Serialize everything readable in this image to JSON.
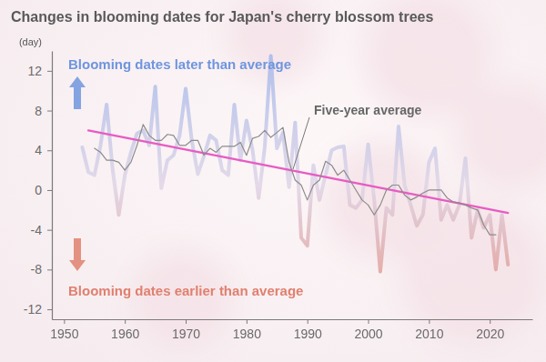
{
  "chart_data": {
    "type": "line",
    "title": "Changes in blooming dates for Japan's cherry blossom trees",
    "y_label": "(day)",
    "xlim": [
      1948,
      2027
    ],
    "xticks": [
      1950,
      1960,
      1970,
      1980,
      1990,
      2000,
      2010,
      2020
    ],
    "ylim": [
      -13,
      14
    ],
    "yticks": [
      -12,
      -8,
      -4,
      0,
      4,
      8,
      12
    ],
    "grid": false,
    "annotations": [
      {
        "text": "Blooming dates later than average",
        "color": "#6f95de"
      },
      {
        "text": "Blooming dates earlier than average",
        "color": "#e0806f"
      }
    ],
    "series": [
      {
        "color": "#9db4ea",
        "x": [
          1953,
          1954,
          1955,
          1956,
          1957,
          1958,
          1959,
          1960,
          1961,
          1962,
          1963,
          1964,
          1965,
          1966,
          1967,
          1968,
          1969,
          1970,
          1971,
          1972,
          1973,
          1974,
          1975,
          1976,
          1977,
          1978,
          1979,
          1980,
          1981,
          1982,
          1983,
          1984,
          1985,
          1986,
          1987,
          1988,
          1989,
          1990,
          1991,
          1992,
          1993,
          1994,
          1995,
          1996,
          1997,
          1998,
          1999,
          2000,
          2001,
          2002,
          2003,
          2004,
          2005,
          2006,
          2007,
          2008,
          2009,
          2010,
          2011,
          2012,
          2013,
          2014,
          2015,
          2016,
          2017,
          2018,
          2019,
          2020,
          2021,
          2022,
          2023
        ],
        "values": [
          4.3,
          1.8,
          1.5,
          4.5,
          8.6,
          2,
          -2.5,
          1.5,
          3.8,
          5.7,
          6,
          4.5,
          10.4,
          0.2,
          3,
          3.5,
          5.5,
          10.2,
          5,
          1.6,
          3.4,
          5.5,
          5,
          2,
          1.5,
          8.6,
          3,
          7,
          4,
          -0.8,
          4.3,
          13.5,
          4.2,
          5.8,
          0.3,
          6.8,
          -4.8,
          -5.6,
          2.5,
          -1,
          1.5,
          4,
          4.3,
          4.4,
          -1.5,
          -1.8,
          -1,
          4.6,
          -1,
          -8.2,
          -1.8,
          -2.5,
          6.4,
          0.5,
          -1.5,
          -3.6,
          -2.5,
          2.8,
          4.2,
          -3,
          -1.5,
          -3,
          -1.5,
          3.2,
          -4.8,
          -2,
          -3.8,
          -2.5,
          -8,
          -2.5,
          -7.5
        ]
      },
      {
        "color": "#e85bc3",
        "x": [
          1954,
          2023
        ],
        "values": [
          6,
          -2.3
        ]
      },
      {
        "name": "Five-year average",
        "color": "#8c8c8c",
        "x": [
          1955,
          1956,
          1957,
          1958,
          1959,
          1960,
          1961,
          1962,
          1963,
          1964,
          1965,
          1966,
          1967,
          1968,
          1969,
          1970,
          1971,
          1972,
          1973,
          1974,
          1975,
          1976,
          1977,
          1978,
          1979,
          1980,
          1981,
          1982,
          1983,
          1984,
          1985,
          1986,
          1987,
          1988,
          1989,
          1990,
          1991,
          1992,
          1993,
          1994,
          1995,
          1996,
          1997,
          1998,
          1999,
          2000,
          2001,
          2002,
          2003,
          2004,
          2005,
          2006,
          2007,
          2008,
          2009,
          2010,
          2011,
          2012,
          2013,
          2014,
          2015,
          2016,
          2017,
          2018,
          2019,
          2020,
          2021
        ],
        "values": [
          4.2,
          3.8,
          3,
          3,
          2.8,
          2,
          2.8,
          4.5,
          6.6,
          5.5,
          5,
          5,
          5.6,
          5.5,
          4.5,
          4.5,
          5,
          5,
          3.5,
          4.2,
          3.8,
          4.4,
          4.4,
          4.4,
          4.8,
          3.5,
          5.2,
          5.4,
          6,
          5.3,
          5.8,
          6.3,
          2.8,
          1,
          0.5,
          -1,
          0.5,
          1,
          2.9,
          2.5,
          1.5,
          2,
          1,
          0,
          -1,
          -1.5,
          -2.5,
          -1.5,
          0,
          0.5,
          0.5,
          -0.5,
          -1,
          -0.7,
          -0.3,
          0,
          0,
          0,
          -0.8,
          -1.2,
          -1.3,
          -1.5,
          -1.8,
          -2,
          -3.5,
          -4.5,
          -4.5
        ]
      }
    ]
  }
}
